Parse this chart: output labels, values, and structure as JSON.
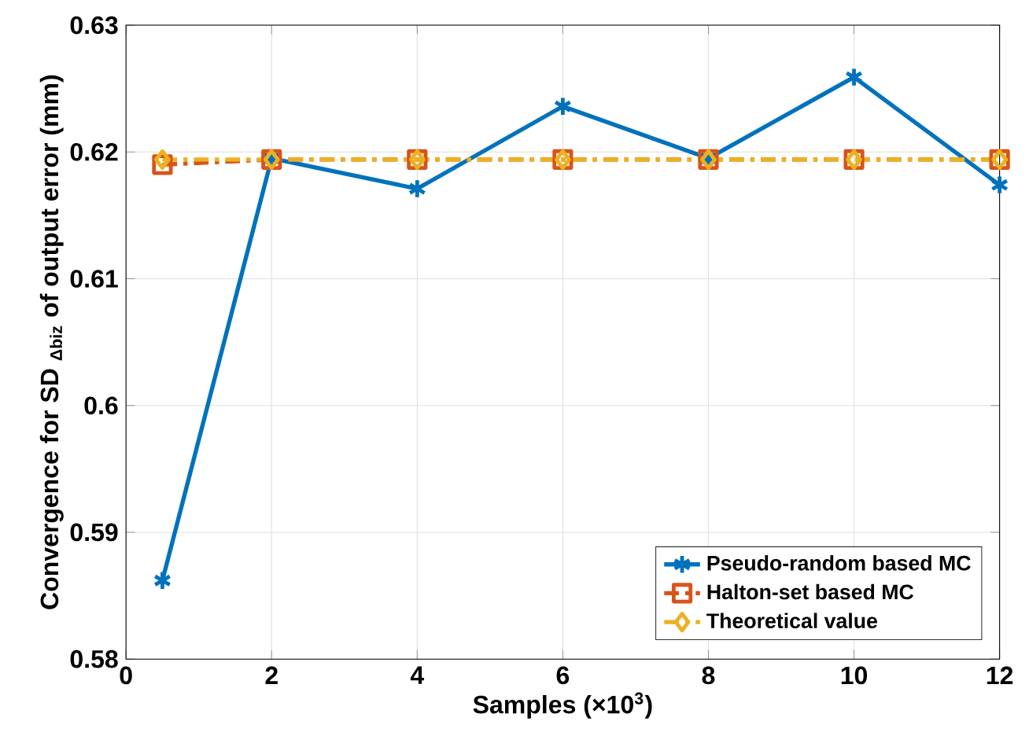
{
  "chart_data": {
    "type": "line",
    "xlabel": "Samples (×10$^{3}$)",
    "ylabel": "Convergence for SD $_{Δbiz}$ of output error (mm)",
    "x": [
      0.5,
      2,
      4,
      6,
      8,
      10,
      12
    ],
    "series": [
      {
        "name": "Pseudo-random based MC",
        "color": "#0072bd",
        "marker": "cross",
        "line_style": "solid",
        "values": [
          0.5862,
          0.6195,
          0.6171,
          0.6236,
          0.6195,
          0.6259,
          0.6174
        ]
      },
      {
        "name": "Halton-set based MC",
        "color": "#d95319",
        "marker": "square",
        "line_style": "dashed",
        "values": [
          0.619,
          0.6194,
          0.6194,
          0.6194,
          0.6194,
          0.6194,
          0.6194
        ]
      },
      {
        "name": "Theoretical value",
        "color": "#edb120",
        "marker": "diamond",
        "line_style": "dashed",
        "values": [
          0.6194,
          0.6194,
          0.6194,
          0.6194,
          0.6194,
          0.6194,
          0.6194
        ]
      }
    ],
    "xlim": [
      0,
      12
    ],
    "ylim": [
      0.58,
      0.63
    ],
    "xticks": [
      0,
      2,
      4,
      6,
      8,
      10,
      12
    ],
    "yticks": [
      0.58,
      0.59,
      0.6,
      0.61,
      0.62,
      0.63
    ],
    "grid": true,
    "legend": "bottom right"
  }
}
